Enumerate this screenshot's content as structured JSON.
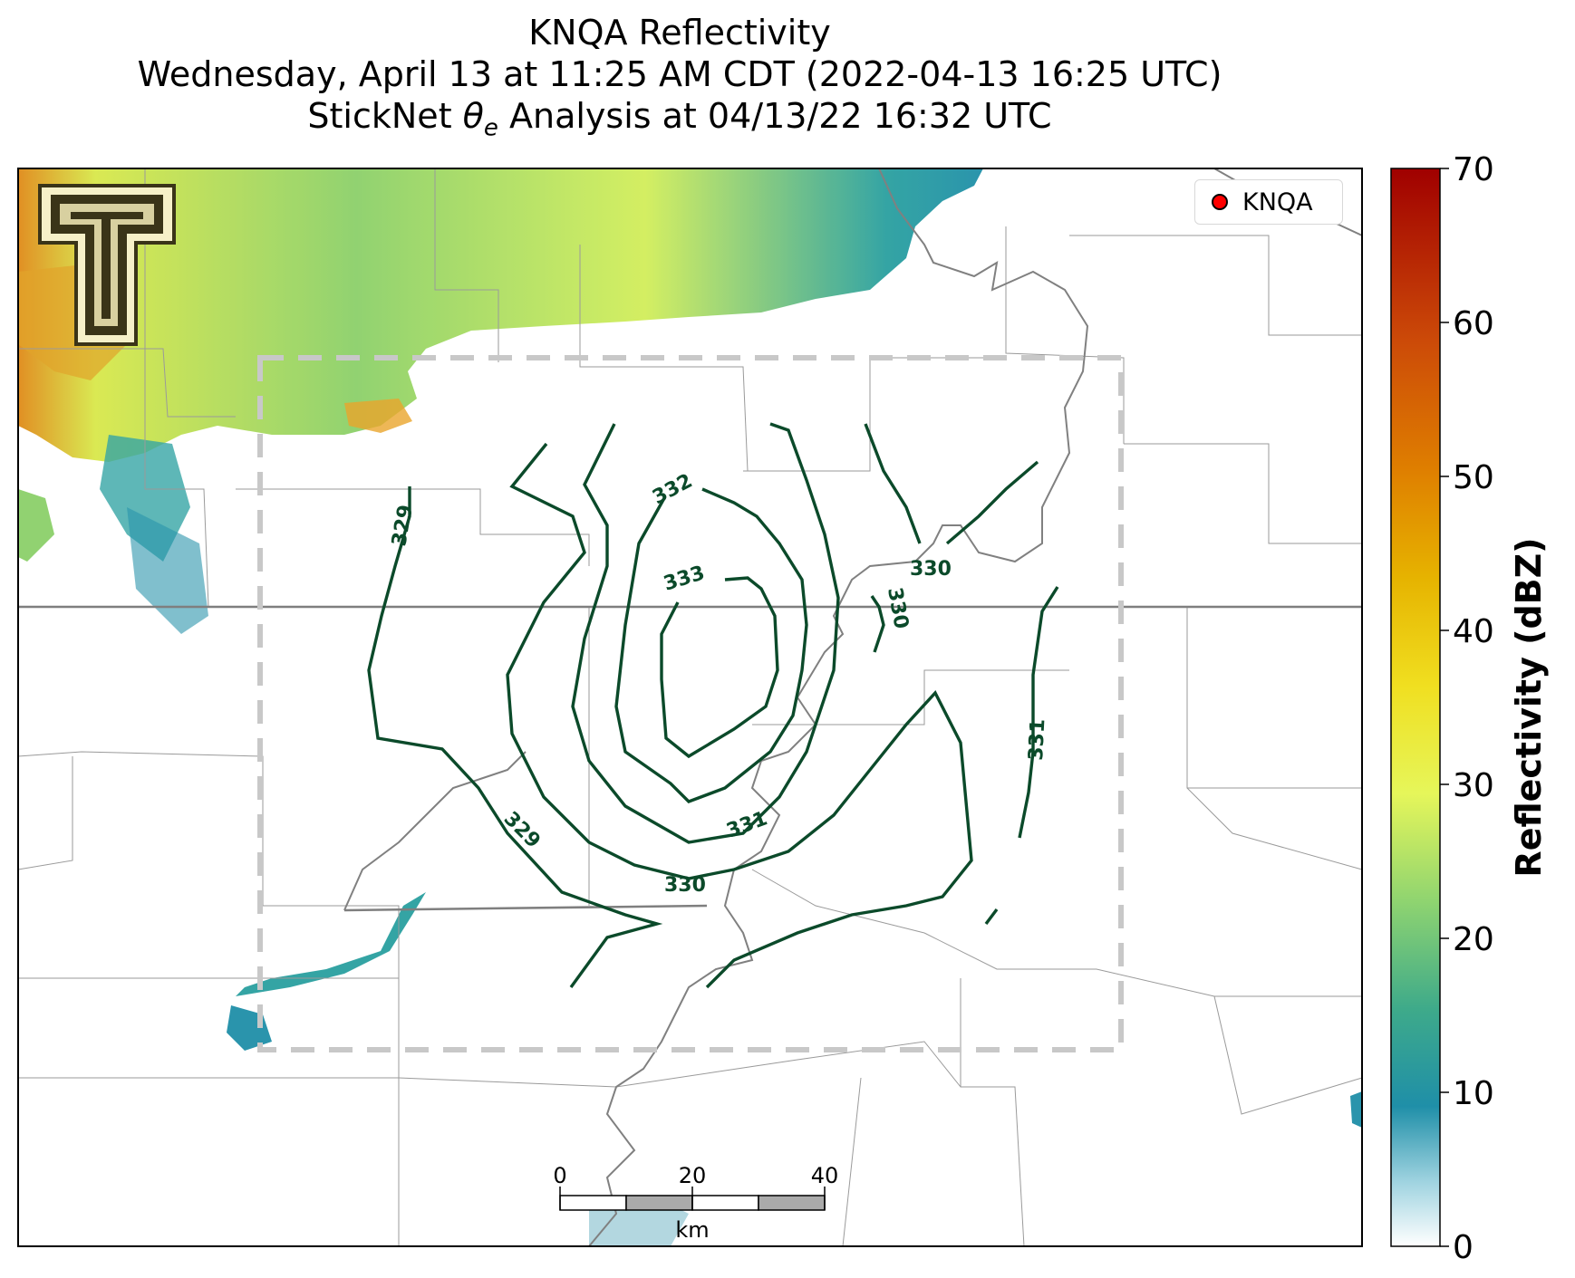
{
  "title": {
    "line1": "KNQA Reflectivity",
    "line2": "Wednesday, April 13 at 11:25 AM CDT (2022-04-13 16:25 UTC)",
    "line3_prefix": "StickNet ",
    "line3_symbol": "θ",
    "line3_sub": "e",
    "line3_suffix": " Analysis at 04/13/22 16:32 UTC"
  },
  "legend": {
    "label": "KNQA",
    "marker_color": "#ff0000"
  },
  "colorbar": {
    "label": "Reflectivity (dBZ)",
    "ticks": [
      "0",
      "10",
      "20",
      "30",
      "40",
      "50",
      "60",
      "70"
    ],
    "range": [
      0,
      70
    ],
    "colors": [
      "#ffffff",
      "#1f8fa8",
      "#5fbf8a",
      "#d9f25a",
      "#e6c000",
      "#d97a00",
      "#c0390a",
      "#a00000"
    ]
  },
  "scale_bar": {
    "ticks": [
      "0",
      "20",
      "40"
    ],
    "unit": "km"
  },
  "contours": [
    {
      "level": "329",
      "color": "#0b4a2a"
    },
    {
      "level": "330",
      "color": "#0b4a2a"
    },
    {
      "level": "331",
      "color": "#0b4a2a"
    },
    {
      "level": "332",
      "color": "#0b4a2a"
    },
    {
      "level": "333",
      "color": "#0b4a2a"
    }
  ],
  "logo": {
    "name": "texas-tech-double-t-logo",
    "letter": "T"
  },
  "colors": {
    "contour": "#0b4a2a",
    "analysis_box": "#c8c8c8",
    "county_lines": "#9a9a9a",
    "river": "#808080"
  }
}
